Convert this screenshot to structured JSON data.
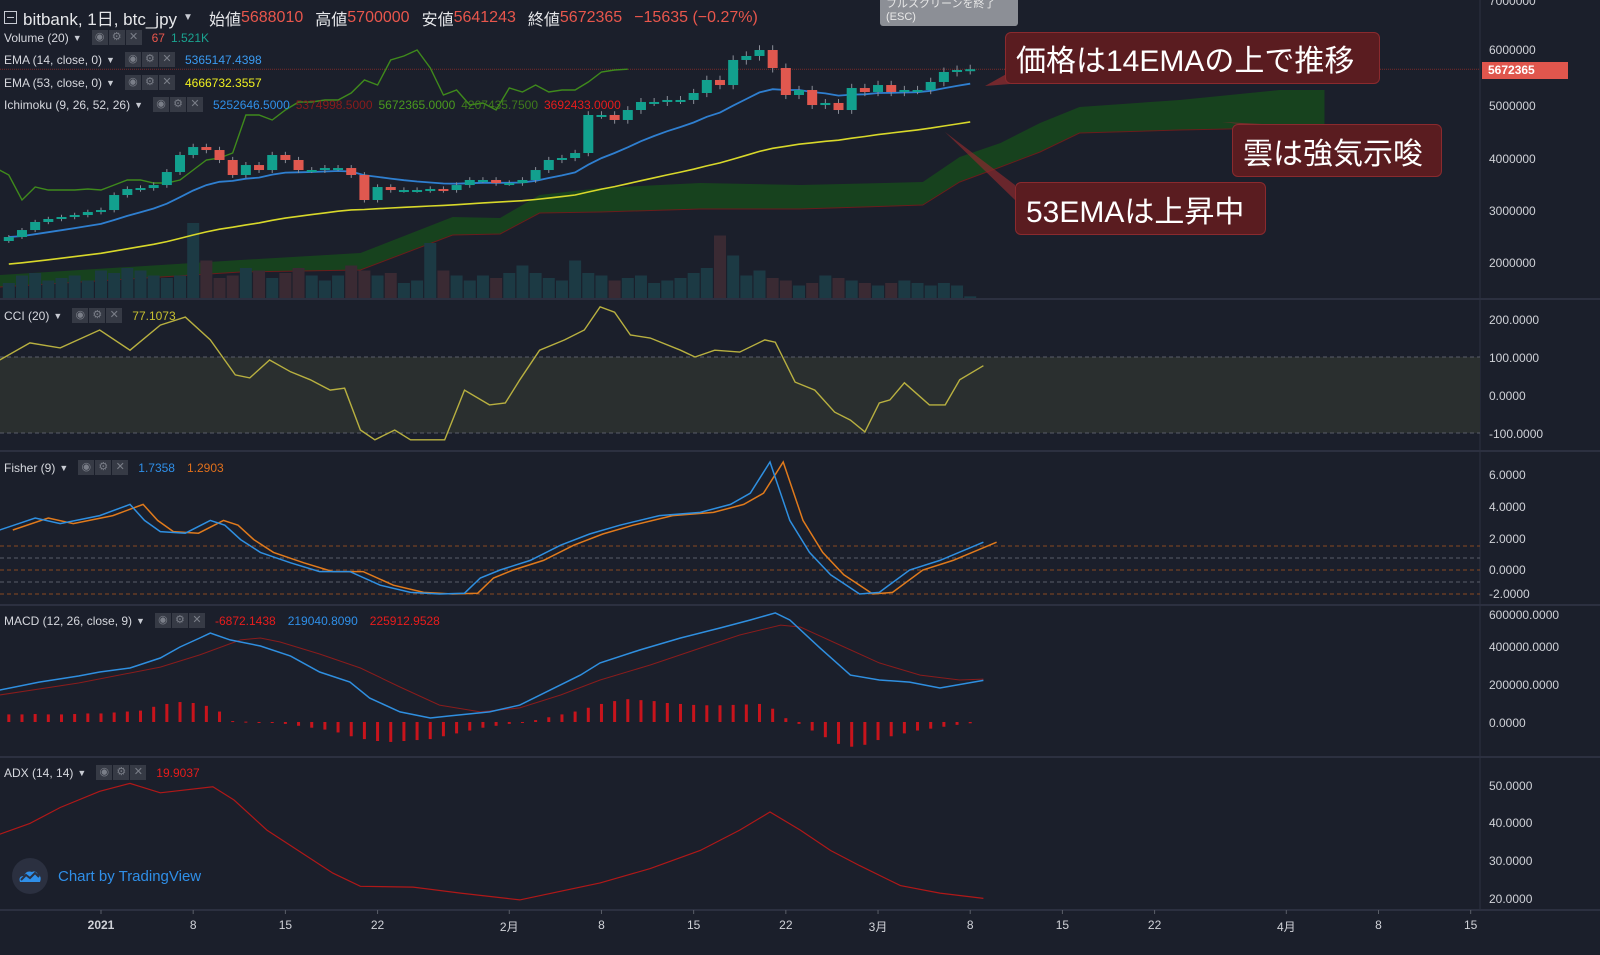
{
  "header": {
    "symbol": "bitbank, 1日, btc_jpy",
    "open_label": "始値",
    "open": "5688010",
    "high_label": "高値",
    "high": "5700000",
    "low_label": "安値",
    "low": "5641243",
    "close_label": "終値",
    "close": "5672365",
    "change": "−15635 (−0.27%)"
  },
  "tooltip": {
    "line1": "フルスクリーンを終了",
    "line2": "(ESC)"
  },
  "indicators": {
    "volume": {
      "label": "Volume (20)",
      "v1": "67",
      "v2": "1.521K"
    },
    "ema14": {
      "label": "EMA (14, close, 0)",
      "v1": "5365147.4398"
    },
    "ema53": {
      "label": "EMA (53, close, 0)",
      "v1": "4666732.3557"
    },
    "ichimoku": {
      "label": "Ichimoku (9, 26, 52, 26)",
      "v1": "5252646.5000",
      "v2": "5374998.5000",
      "v3": "5672365.0000",
      "v4": "4207435.7500",
      "v5": "3692433.0000"
    },
    "cci": {
      "label": "CCI (20)",
      "v1": "77.1073"
    },
    "fisher": {
      "label": "Fisher (9)",
      "v1": "1.7358",
      "v2": "1.2903"
    },
    "macd": {
      "label": "MACD (12, 26, close, 9)",
      "v1": "-6872.1438",
      "v2": "219040.8090",
      "v3": "225912.9528"
    },
    "adx": {
      "label": "ADX (14, 14)",
      "v1": "19.9037"
    }
  },
  "annotations": [
    {
      "text": "価格は14EMAの上で推移"
    },
    {
      "text": "雲は強気示唆"
    },
    {
      "text": "53EMAは上昇中"
    }
  ],
  "price_axis": {
    "ticks": [
      "7000000",
      "6000000",
      "5000000",
      "4000000",
      "3000000",
      "2000000"
    ],
    "last_price": "5672365"
  },
  "cci_axis": [
    "200.0000",
    "100.0000",
    "0.0000",
    "-100.0000"
  ],
  "fisher_axis": [
    "6.0000",
    "4.0000",
    "2.0000",
    "0.0000",
    "-2.0000"
  ],
  "macd_axis": [
    "600000.0000",
    "400000.0000",
    "200000.0000",
    "0.0000"
  ],
  "adx_axis": [
    "50.0000",
    "40.0000",
    "30.0000",
    "20.0000"
  ],
  "time_axis": [
    {
      "label": "2021",
      "day": 0,
      "bold": true
    },
    {
      "label": "8",
      "day": 7
    },
    {
      "label": "15",
      "day": 14
    },
    {
      "label": "22",
      "day": 21
    },
    {
      "label": "2月",
      "day": 31
    },
    {
      "label": "8",
      "day": 38
    },
    {
      "label": "15",
      "day": 45
    },
    {
      "label": "22",
      "day": 52
    },
    {
      "label": "3月",
      "day": 59
    },
    {
      "label": "8",
      "day": 66
    },
    {
      "label": "15",
      "day": 73
    },
    {
      "label": "22",
      "day": 80
    },
    {
      "label": "4月",
      "day": 90
    },
    {
      "label": "8",
      "day": 97
    },
    {
      "label": "15",
      "day": 104
    }
  ],
  "branding": {
    "text": "Chart by TradingView"
  },
  "colors": {
    "up": "#12a08e",
    "down": "#e0584f",
    "ema14": "#2f7fd0",
    "ema53": "#d8d82a",
    "chikou": "#3f8a1c",
    "cloud": "#17451d",
    "cci": "#b8b040",
    "fisher": "#2f8fe0",
    "trigger": "#e07a1c",
    "macd": "#2f8fe0",
    "signal": "#8a1c1c",
    "hist": "#c8141c",
    "adx": "#b01818"
  },
  "chart_data": [
    {
      "type": "candlestick",
      "title": "bitbank, 1日, btc_jpy",
      "start_day": -7,
      "closes": [
        2476000,
        2609000,
        2762000,
        2819000,
        2857000,
        2895000,
        2952000,
        2990000,
        3276000,
        3390000,
        3409000,
        3466000,
        3714000,
        4038000,
        4190000,
        4133000,
        3943000,
        3657000,
        3847000,
        3752000,
        4038000,
        3943000,
        3752000,
        3752000,
        3790000,
        3790000,
        3657000,
        3181000,
        3428000,
        3371000,
        3371000,
        3371000,
        3390000,
        3371000,
        3466000,
        3562000,
        3562000,
        3504000,
        3504000,
        3562000,
        3752000,
        3943000,
        3981000,
        4076000,
        4800000,
        4800000,
        4705000,
        4895000,
        5048000,
        5048000,
        5086000,
        5086000,
        5219000,
        5467000,
        5371000,
        5848000,
        5924000,
        6038000,
        5695000,
        5181000,
        5276000,
        4990000,
        5029000,
        4895000,
        5314000,
        5238000,
        5371000,
        5238000,
        5276000,
        5276000,
        5429000,
        5619000,
        5657000,
        5672365
      ],
      "first_open": 2400000,
      "volume": [
        600,
        900,
        1000,
        700,
        800,
        900,
        700,
        1100,
        1000,
        1200,
        1100,
        900,
        800,
        900,
        3000,
        1500,
        800,
        900,
        1200,
        1100,
        800,
        1000,
        1200,
        900,
        700,
        900,
        1300,
        1100,
        900,
        1000,
        600,
        700,
        2200,
        1100,
        900,
        700,
        900,
        800,
        1000,
        1300,
        1000,
        800,
        700,
        1500,
        1000,
        900,
        700,
        800,
        900,
        600,
        700,
        800,
        1000,
        1200,
        2500,
        1700,
        900,
        1100,
        800,
        700,
        500,
        600,
        900,
        800,
        700,
        600,
        500,
        600,
        700,
        600,
        500,
        600,
        500,
        67
      ],
      "ema53_seed": 1940000,
      "ichimoku_cloud": [
        [
          -7.7,
          1752000,
          1524000
        ],
        [
          10.6,
          2038000,
          1810000
        ],
        [
          19.7,
          2171000,
          1847000
        ],
        [
          26.7,
          2857000,
          2514000
        ],
        [
          30.3,
          2838000,
          2533000
        ],
        [
          33.3,
          3276000,
          2933000
        ],
        [
          37.9,
          3409000,
          2952000
        ],
        [
          45.5,
          3504000,
          3009000
        ],
        [
          53.1,
          3466000,
          3009000
        ],
        [
          62.4,
          3523000,
          3085000
        ],
        [
          65.2,
          4000000,
          3523000
        ],
        [
          68.3,
          4267000,
          3810000
        ],
        [
          71.3,
          4648000,
          4095000
        ],
        [
          74.3,
          4952000,
          4457000
        ],
        [
          81.9,
          5086000,
          4514000
        ],
        [
          89.5,
          5276000,
          4552000
        ],
        [
          92.9,
          5276000,
          4552000
        ]
      ],
      "chikou_shift_days": -26,
      "ylim": [
        1500000,
        7000000
      ]
    },
    {
      "type": "line",
      "title": "CCI (20)",
      "ylim": [
        -150,
        250
      ],
      "band": [
        -100,
        100
      ],
      "points": [
        [
          -7.7,
          92
        ],
        [
          -5.4,
          137
        ],
        [
          -3.1,
          124
        ],
        [
          -0.1,
          171
        ],
        [
          2.2,
          118
        ],
        [
          4.5,
          184
        ],
        [
          6.4,
          205
        ],
        [
          8.3,
          145
        ],
        [
          10.2,
          53
        ],
        [
          11.3,
          45
        ],
        [
          12.8,
          92
        ],
        [
          14.4,
          61
        ],
        [
          15.9,
          40
        ],
        [
          17.4,
          13
        ],
        [
          18.5,
          18
        ],
        [
          19.7,
          -92
        ],
        [
          20.8,
          -118
        ],
        [
          22.3,
          -92
        ],
        [
          23.5,
          -118
        ],
        [
          26.1,
          -118
        ],
        [
          27.6,
          13
        ],
        [
          29.5,
          -26
        ],
        [
          30.7,
          -21
        ],
        [
          31.8,
          40
        ],
        [
          33.3,
          118
        ],
        [
          35.2,
          145
        ],
        [
          36.7,
          171
        ],
        [
          37.9,
          232
        ],
        [
          39.0,
          218
        ],
        [
          40.2,
          158
        ],
        [
          41.7,
          150
        ],
        [
          44.0,
          118
        ],
        [
          45.1,
          100
        ],
        [
          46.6,
          118
        ],
        [
          48.5,
          113
        ],
        [
          50.4,
          145
        ],
        [
          51.2,
          139
        ],
        [
          52.7,
          34
        ],
        [
          54.2,
          13
        ],
        [
          55.7,
          -45
        ],
        [
          56.9,
          -66
        ],
        [
          58.0,
          -97
        ],
        [
          59.1,
          -21
        ],
        [
          59.9,
          -13
        ],
        [
          61.0,
          32
        ],
        [
          62.9,
          -26
        ],
        [
          64.1,
          -26
        ],
        [
          65.2,
          40
        ],
        [
          67.0,
          77.1
        ]
      ]
    },
    {
      "type": "line",
      "title": "Fisher (9)",
      "levels": [
        1.5,
        0.75,
        0,
        -0.75,
        -1.5
      ],
      "trigger_lag_days": 1,
      "points": [
        [
          -7.7,
          2.5
        ],
        [
          -5.0,
          3.25
        ],
        [
          -3.1,
          2.9
        ],
        [
          -0.1,
          3.4
        ],
        [
          2.2,
          4.1
        ],
        [
          3.3,
          3.1
        ],
        [
          4.5,
          2.4
        ],
        [
          6.4,
          2.3
        ],
        [
          8.3,
          3.1
        ],
        [
          9.4,
          2.8
        ],
        [
          10.6,
          1.9
        ],
        [
          12.1,
          1.1
        ],
        [
          14.4,
          0.45
        ],
        [
          16.6,
          -0.1
        ],
        [
          18.9,
          -0.1
        ],
        [
          21.2,
          -0.95
        ],
        [
          23.5,
          -1.4
        ],
        [
          25.7,
          -1.5
        ],
        [
          27.6,
          -1.45
        ],
        [
          28.8,
          -0.5
        ],
        [
          30.3,
          0
        ],
        [
          32.6,
          0.6
        ],
        [
          34.9,
          1.55
        ],
        [
          37.1,
          2.25
        ],
        [
          39.4,
          2.8
        ],
        [
          42.4,
          3.4
        ],
        [
          45.5,
          3.6
        ],
        [
          47.8,
          4.1
        ],
        [
          49.3,
          4.8
        ],
        [
          50.8,
          6.75
        ],
        [
          52.3,
          3.1
        ],
        [
          53.8,
          1.1
        ],
        [
          55.4,
          -0.3
        ],
        [
          57.6,
          -1.5
        ],
        [
          59.1,
          -1.4
        ],
        [
          61.4,
          0
        ],
        [
          63.7,
          0.6
        ],
        [
          67.0,
          1.7358
        ]
      ]
    },
    {
      "type": "line+bar",
      "title": "MACD (12, 26, close, 9)",
      "macd": [
        [
          -7.7,
          168000
        ],
        [
          -4.7,
          210000
        ],
        [
          -1.7,
          242000
        ],
        [
          -0.1,
          263000
        ],
        [
          2.2,
          284000
        ],
        [
          4.5,
          337000
        ],
        [
          6.0,
          395000
        ],
        [
          7.5,
          442000
        ],
        [
          8.3,
          468000
        ],
        [
          9.8,
          432000
        ],
        [
          12.1,
          400000
        ],
        [
          14.4,
          347000
        ],
        [
          16.6,
          263000
        ],
        [
          18.9,
          210000
        ],
        [
          20.4,
          126000
        ],
        [
          22.7,
          53000
        ],
        [
          25.0,
          21000
        ],
        [
          26.5,
          32000
        ],
        [
          29.5,
          53000
        ],
        [
          31.8,
          89000
        ],
        [
          34.1,
          168000
        ],
        [
          36.4,
          247000
        ],
        [
          37.9,
          311000
        ],
        [
          40.9,
          379000
        ],
        [
          44.0,
          442000
        ],
        [
          47.0,
          495000
        ],
        [
          49.3,
          537000
        ],
        [
          51.2,
          574000
        ],
        [
          52.3,
          537000
        ],
        [
          54.6,
          389000
        ],
        [
          56.9,
          247000
        ],
        [
          59.1,
          221000
        ],
        [
          61.4,
          210000
        ],
        [
          63.7,
          179000
        ],
        [
          67.0,
          219041
        ]
      ],
      "signal": [
        [
          -7.7,
          142000
        ],
        [
          -1.7,
          205000
        ],
        [
          4.5,
          289000
        ],
        [
          7.5,
          353000
        ],
        [
          10.6,
          432000
        ],
        [
          12.1,
          442000
        ],
        [
          13.6,
          421000
        ],
        [
          16.6,
          358000
        ],
        [
          19.7,
          284000
        ],
        [
          22.7,
          184000
        ],
        [
          25.7,
          89000
        ],
        [
          28.8,
          53000
        ],
        [
          31.8,
          74000
        ],
        [
          34.9,
          142000
        ],
        [
          37.9,
          221000
        ],
        [
          41.7,
          300000
        ],
        [
          45.5,
          389000
        ],
        [
          48.5,
          458000
        ],
        [
          51.6,
          510000
        ],
        [
          53.1,
          500000
        ],
        [
          56.1,
          405000
        ],
        [
          59.1,
          311000
        ],
        [
          62.2,
          247000
        ],
        [
          65.2,
          221000
        ],
        [
          67.0,
          225913
        ]
      ],
      "histogram_start_day": -7,
      "histogram": [
        40000,
        40000,
        42000,
        40000,
        40000,
        42000,
        45000,
        45000,
        50000,
        55000,
        60000,
        80000,
        95000,
        105000,
        100000,
        85000,
        55000,
        5000,
        2000,
        0,
        -3000,
        -10000,
        -20000,
        -30000,
        -40000,
        -55000,
        -75000,
        -90000,
        -100000,
        -105000,
        -100000,
        -95000,
        -90000,
        -75000,
        -60000,
        -45000,
        -30000,
        -20000,
        -10000,
        0,
        10000,
        25000,
        40000,
        55000,
        75000,
        95000,
        110000,
        120000,
        115000,
        110000,
        100000,
        95000,
        90000,
        88000,
        88000,
        90000,
        92000,
        95000,
        70000,
        20000,
        -10000,
        -45000,
        -80000,
        -115000,
        -130000,
        -120000,
        -95000,
        -75000,
        -60000,
        -45000,
        -35000,
        -25000,
        -15000,
        -6872
      ],
      "ylim": [
        -200000,
        650000
      ]
    },
    {
      "type": "line",
      "title": "ADX (14, 14)",
      "points": [
        [
          -7.7,
          36.9
        ],
        [
          -5.4,
          39.8
        ],
        [
          -3.1,
          44
        ],
        [
          -0.1,
          48.3
        ],
        [
          2.2,
          50.4
        ],
        [
          4.5,
          47.9
        ],
        [
          8.5,
          49.5
        ],
        [
          10.1,
          46
        ],
        [
          12.6,
          38
        ],
        [
          17.6,
          26.6
        ],
        [
          19.7,
          23.1
        ],
        [
          23.7,
          22.9
        ],
        [
          27.3,
          21.3
        ],
        [
          31.8,
          19.5
        ],
        [
          37.9,
          24
        ],
        [
          41.7,
          27.8
        ],
        [
          45.5,
          32.6
        ],
        [
          48.5,
          38
        ],
        [
          50.8,
          42.8
        ],
        [
          53.1,
          38
        ],
        [
          55.4,
          32.6
        ],
        [
          57.6,
          28.6
        ],
        [
          60.7,
          23.3
        ],
        [
          63.7,
          21.3
        ],
        [
          67.0,
          19.9
        ]
      ]
    }
  ]
}
